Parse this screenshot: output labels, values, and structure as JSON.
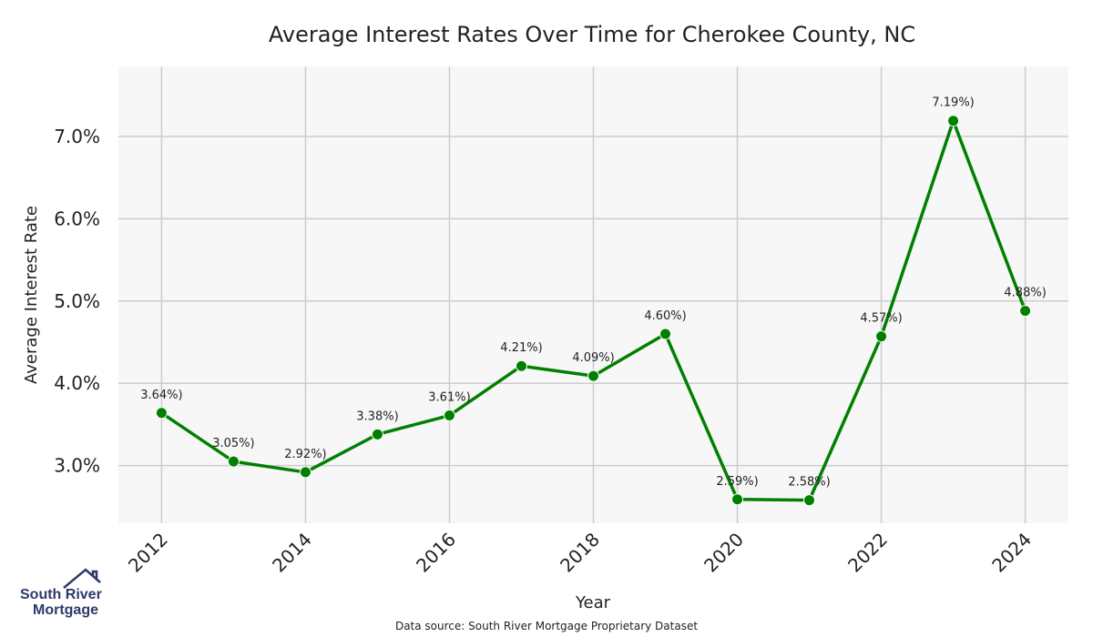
{
  "chart_data": {
    "type": "line",
    "title": "Average Interest Rates Over Time for Cherokee County, NC",
    "xlabel": "Year",
    "ylabel": "Average Interest Rate",
    "x": [
      2012,
      2013,
      2014,
      2015,
      2016,
      2017,
      2018,
      2019,
      2020,
      2021,
      2022,
      2023,
      2024
    ],
    "values": [
      3.64,
      3.05,
      2.92,
      3.38,
      3.61,
      4.21,
      4.09,
      4.6,
      2.59,
      2.58,
      4.57,
      7.19,
      4.88
    ],
    "data_labels": [
      "3.64%)",
      "3.05%)",
      "2.92%)",
      "3.38%)",
      "3.61%)",
      "4.21%)",
      "4.09%)",
      "4.60%)",
      "2.59%)",
      "2.58%)",
      "4.57%)",
      "7.19%)",
      "4.88%)"
    ],
    "x_ticks": [
      "2012",
      "2014",
      "2016",
      "2018",
      "2020",
      "2022",
      "2024"
    ],
    "y_ticks": [
      {
        "value": 3.0,
        "label": "3.0%"
      },
      {
        "value": 4.0,
        "label": "4.0%"
      },
      {
        "value": 5.0,
        "label": "5.0%"
      },
      {
        "value": 6.0,
        "label": "6.0%"
      },
      {
        "value": 7.0,
        "label": "7.0%"
      }
    ],
    "xlim": [
      2011.4,
      2024.6
    ],
    "ylim": [
      2.3,
      7.85
    ],
    "grid": true,
    "line_color": "#008000",
    "plot_background": "#f7f7f7",
    "grid_color": "#cccccc"
  },
  "footer": {
    "source": "Data source: South River Mortgage Proprietary Dataset"
  },
  "logo": {
    "line1": "South River",
    "line2": "Mortgage",
    "color": "#2b3a6b"
  }
}
